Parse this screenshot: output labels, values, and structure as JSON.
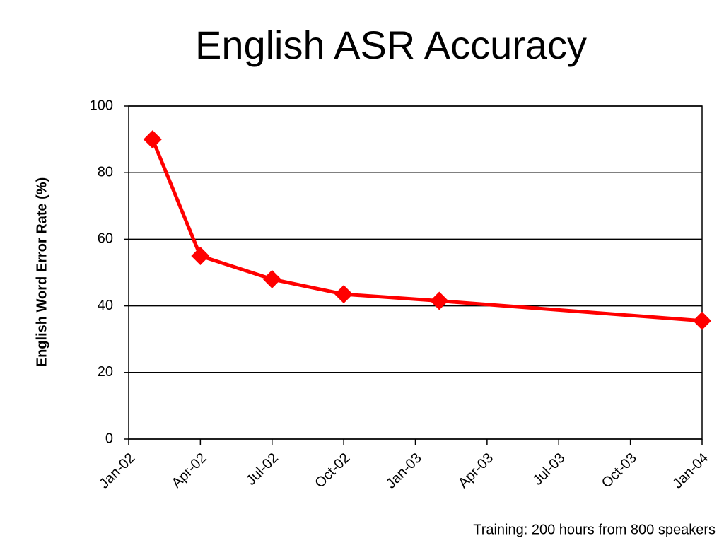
{
  "chart_data": {
    "type": "line",
    "title": "English ASR Accuracy",
    "y_label": "English Word Error Rate (%)",
    "annotation": "Training: 200 hours from 800 speakers",
    "x": [
      "Feb-02",
      "Apr-02",
      "Jul-02",
      "Oct-02",
      "Feb-03",
      "Jan-04"
    ],
    "values": [
      90,
      55,
      48,
      43.5,
      41.5,
      35.5
    ],
    "color": "#ff0000",
    "marker": "diamond",
    "xlim": [
      "Jan-02",
      "Jan-04"
    ],
    "xticks": [
      "Jan-02",
      "Apr-02",
      "Jul-02",
      "Oct-02",
      "Jan-03",
      "Apr-03",
      "Jul-03",
      "Oct-03",
      "Jan-04"
    ],
    "ylim": [
      0,
      100
    ],
    "yticks": [
      0,
      20,
      40,
      60,
      80,
      100
    ],
    "grid": true
  }
}
